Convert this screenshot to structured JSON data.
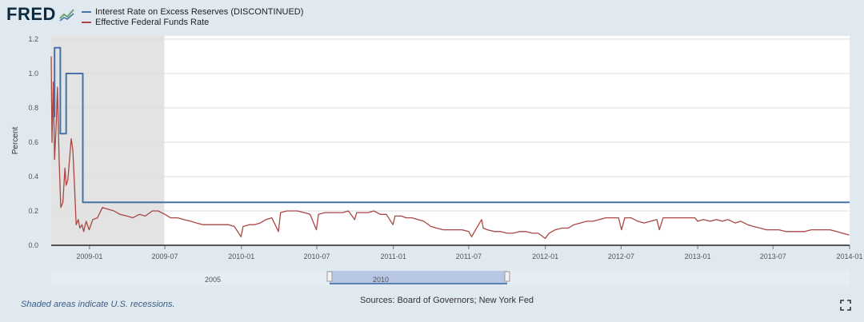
{
  "header": {
    "logo_text": "FRED",
    "logo_icon": "fred-chart-icon"
  },
  "footer": {
    "recession_note": "Shaded areas indicate U.S. recessions.",
    "sources": "Sources: Board of Governors; New York Fed",
    "fullscreen_icon": "fullscreen-icon"
  },
  "navigator": {
    "labels": [
      "2005",
      "2010"
    ]
  },
  "chart_data": {
    "type": "line",
    "title": "",
    "xlabel": "",
    "ylabel": "Percent",
    "ylim": [
      0,
      1.2
    ],
    "yticks": [
      "0.0",
      "0.2",
      "0.4",
      "0.6",
      "0.8",
      "1.0",
      "1.2"
    ],
    "xlim": [
      "2008-10-01",
      "2014-01-01"
    ],
    "xticks": [
      "2009-01",
      "2009-07",
      "2010-01",
      "2010-07",
      "2011-01",
      "2011-07",
      "2012-01",
      "2012-07",
      "2013-01",
      "2013-07",
      "2014-01"
    ],
    "grid": true,
    "legend": "top-left",
    "recession_shading": [
      "2008-10-01",
      "2009-06-30"
    ],
    "series": [
      {
        "name": "Interest Rate on Excess Reserves (DISCONTINUED)",
        "color": "#4572a7",
        "step": true,
        "points": [
          [
            "2008-10-01",
            0.75
          ],
          [
            "2008-10-09",
            1.15
          ],
          [
            "2008-10-23",
            0.65
          ],
          [
            "2008-11-06",
            1.0
          ],
          [
            "2008-12-16",
            0.25
          ],
          [
            "2014-01-01",
            0.25
          ]
        ]
      },
      {
        "name": "Effective Federal Funds Rate",
        "color": "#aa4643",
        "points": [
          [
            "2008-10-01",
            1.1
          ],
          [
            "2008-10-03",
            0.6
          ],
          [
            "2008-10-06",
            0.95
          ],
          [
            "2008-10-09",
            0.5
          ],
          [
            "2008-10-13",
            0.7
          ],
          [
            "2008-10-16",
            0.92
          ],
          [
            "2008-10-20",
            0.5
          ],
          [
            "2008-10-24",
            0.22
          ],
          [
            "2008-10-29",
            0.25
          ],
          [
            "2008-11-03",
            0.45
          ],
          [
            "2008-11-06",
            0.35
          ],
          [
            "2008-11-10",
            0.38
          ],
          [
            "2008-11-14",
            0.5
          ],
          [
            "2008-11-18",
            0.62
          ],
          [
            "2008-11-22",
            0.55
          ],
          [
            "2008-11-26",
            0.35
          ],
          [
            "2008-11-30",
            0.12
          ],
          [
            "2008-12-05",
            0.15
          ],
          [
            "2008-12-09",
            0.1
          ],
          [
            "2008-12-14",
            0.12
          ],
          [
            "2008-12-18",
            0.08
          ],
          [
            "2008-12-24",
            0.14
          ],
          [
            "2008-12-31",
            0.09
          ],
          [
            "2009-01-09",
            0.15
          ],
          [
            "2009-01-20",
            0.16
          ],
          [
            "2009-02-01",
            0.22
          ],
          [
            "2009-02-15",
            0.21
          ],
          [
            "2009-03-01",
            0.2
          ],
          [
            "2009-03-15",
            0.18
          ],
          [
            "2009-04-01",
            0.17
          ],
          [
            "2009-04-15",
            0.16
          ],
          [
            "2009-05-01",
            0.18
          ],
          [
            "2009-05-15",
            0.17
          ],
          [
            "2009-06-01",
            0.2
          ],
          [
            "2009-06-15",
            0.2
          ],
          [
            "2009-07-01",
            0.18
          ],
          [
            "2009-07-15",
            0.16
          ],
          [
            "2009-08-01",
            0.16
          ],
          [
            "2009-08-15",
            0.15
          ],
          [
            "2009-09-01",
            0.14
          ],
          [
            "2009-09-15",
            0.13
          ],
          [
            "2009-10-01",
            0.12
          ],
          [
            "2009-10-15",
            0.12
          ],
          [
            "2009-11-01",
            0.12
          ],
          [
            "2009-11-15",
            0.12
          ],
          [
            "2009-12-01",
            0.12
          ],
          [
            "2009-12-15",
            0.11
          ],
          [
            "2009-12-31",
            0.05
          ],
          [
            "2010-01-05",
            0.11
          ],
          [
            "2010-01-20",
            0.12
          ],
          [
            "2010-02-01",
            0.12
          ],
          [
            "2010-02-15",
            0.13
          ],
          [
            "2010-03-01",
            0.15
          ],
          [
            "2010-03-15",
            0.16
          ],
          [
            "2010-03-31",
            0.08
          ],
          [
            "2010-04-05",
            0.19
          ],
          [
            "2010-04-20",
            0.2
          ],
          [
            "2010-05-01",
            0.2
          ],
          [
            "2010-05-15",
            0.2
          ],
          [
            "2010-06-01",
            0.19
          ],
          [
            "2010-06-15",
            0.18
          ],
          [
            "2010-06-30",
            0.09
          ],
          [
            "2010-07-05",
            0.18
          ],
          [
            "2010-07-20",
            0.19
          ],
          [
            "2010-08-01",
            0.19
          ],
          [
            "2010-08-15",
            0.19
          ],
          [
            "2010-09-01",
            0.19
          ],
          [
            "2010-09-15",
            0.2
          ],
          [
            "2010-09-30",
            0.15
          ],
          [
            "2010-10-05",
            0.19
          ],
          [
            "2010-10-20",
            0.19
          ],
          [
            "2010-11-01",
            0.19
          ],
          [
            "2010-11-15",
            0.2
          ],
          [
            "2010-12-01",
            0.18
          ],
          [
            "2010-12-15",
            0.18
          ],
          [
            "2010-12-31",
            0.12
          ],
          [
            "2011-01-05",
            0.17
          ],
          [
            "2011-01-20",
            0.17
          ],
          [
            "2011-02-01",
            0.16
          ],
          [
            "2011-02-15",
            0.16
          ],
          [
            "2011-03-01",
            0.15
          ],
          [
            "2011-03-15",
            0.14
          ],
          [
            "2011-04-01",
            0.11
          ],
          [
            "2011-04-15",
            0.1
          ],
          [
            "2011-05-01",
            0.09
          ],
          [
            "2011-05-15",
            0.09
          ],
          [
            "2011-06-01",
            0.09
          ],
          [
            "2011-06-15",
            0.09
          ],
          [
            "2011-07-01",
            0.08
          ],
          [
            "2011-07-08",
            0.05
          ],
          [
            "2011-07-15",
            0.08
          ],
          [
            "2011-08-01",
            0.15
          ],
          [
            "2011-08-05",
            0.1
          ],
          [
            "2011-08-15",
            0.09
          ],
          [
            "2011-09-01",
            0.08
          ],
          [
            "2011-09-15",
            0.08
          ],
          [
            "2011-10-01",
            0.07
          ],
          [
            "2011-10-15",
            0.07
          ],
          [
            "2011-11-01",
            0.08
          ],
          [
            "2011-11-15",
            0.08
          ],
          [
            "2011-12-01",
            0.07
          ],
          [
            "2011-12-15",
            0.07
          ],
          [
            "2012-01-01",
            0.04
          ],
          [
            "2012-01-10",
            0.07
          ],
          [
            "2012-01-25",
            0.09
          ],
          [
            "2012-02-10",
            0.1
          ],
          [
            "2012-02-25",
            0.1
          ],
          [
            "2012-03-10",
            0.12
          ],
          [
            "2012-03-25",
            0.13
          ],
          [
            "2012-04-10",
            0.14
          ],
          [
            "2012-04-25",
            0.14
          ],
          [
            "2012-05-10",
            0.15
          ],
          [
            "2012-05-25",
            0.16
          ],
          [
            "2012-06-10",
            0.16
          ],
          [
            "2012-06-25",
            0.16
          ],
          [
            "2012-07-02",
            0.09
          ],
          [
            "2012-07-10",
            0.16
          ],
          [
            "2012-07-25",
            0.16
          ],
          [
            "2012-08-10",
            0.14
          ],
          [
            "2012-08-25",
            0.13
          ],
          [
            "2012-09-10",
            0.14
          ],
          [
            "2012-09-25",
            0.15
          ],
          [
            "2012-10-01",
            0.09
          ],
          [
            "2012-10-10",
            0.16
          ],
          [
            "2012-10-25",
            0.16
          ],
          [
            "2012-11-10",
            0.16
          ],
          [
            "2012-11-25",
            0.16
          ],
          [
            "2012-12-10",
            0.16
          ],
          [
            "2012-12-25",
            0.16
          ],
          [
            "2013-01-01",
            0.14
          ],
          [
            "2013-01-15",
            0.15
          ],
          [
            "2013-01-31",
            0.14
          ],
          [
            "2013-02-15",
            0.15
          ],
          [
            "2013-03-01",
            0.14
          ],
          [
            "2013-03-15",
            0.15
          ],
          [
            "2013-04-01",
            0.13
          ],
          [
            "2013-04-15",
            0.14
          ],
          [
            "2013-05-01",
            0.12
          ],
          [
            "2013-05-15",
            0.11
          ],
          [
            "2013-06-01",
            0.1
          ],
          [
            "2013-06-15",
            0.09
          ],
          [
            "2013-07-01",
            0.09
          ],
          [
            "2013-07-15",
            0.09
          ],
          [
            "2013-08-01",
            0.08
          ],
          [
            "2013-08-15",
            0.08
          ],
          [
            "2013-09-01",
            0.08
          ],
          [
            "2013-09-15",
            0.08
          ],
          [
            "2013-10-01",
            0.09
          ],
          [
            "2013-10-15",
            0.09
          ],
          [
            "2013-11-01",
            0.09
          ],
          [
            "2013-11-15",
            0.09
          ],
          [
            "2013-12-01",
            0.08
          ],
          [
            "2013-12-15",
            0.07
          ],
          [
            "2013-12-31",
            0.06
          ]
        ]
      }
    ]
  }
}
